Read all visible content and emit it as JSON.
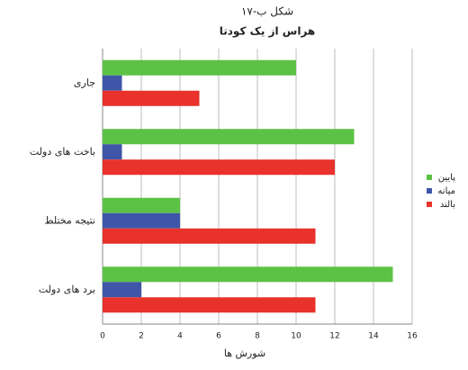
{
  "chart_data": {
    "type": "hbar",
    "title": "شکل ب-۱۷",
    "subtitle": "هراس از یک کودتا",
    "x_label": "شورش ها",
    "categories": [
      "جاری",
      "باخت های دولت",
      "نتیجه مختلط",
      "برد های دولت"
    ],
    "series": [
      {
        "name": "پایین",
        "color": "#5cc245",
        "values": [
          10,
          13,
          4,
          15
        ]
      },
      {
        "name": "میانه",
        "color": "#3f56a8",
        "values": [
          1,
          1,
          4,
          2
        ]
      },
      {
        "name": "بالند",
        "color": "#e8322b",
        "values": [
          5,
          12,
          11,
          11
        ]
      }
    ],
    "xlim": [
      0,
      16
    ],
    "xticks": [
      0,
      2,
      4,
      6,
      8,
      10,
      12,
      14,
      16
    ],
    "grid": true,
    "legend": "right"
  }
}
